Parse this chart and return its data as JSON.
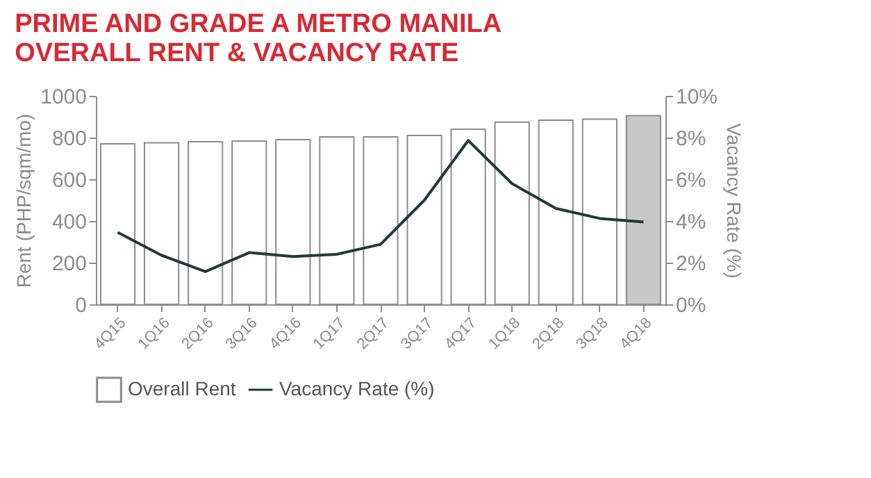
{
  "chart_data": {
    "type": "bar",
    "title": [
      "PRIME AND GRADE A METRO MANILA",
      "OVERALL RENT & VACANCY RATE"
    ],
    "ylabel": "Rent (PHP/sqm/mo)",
    "y2label": "Vacancy Rate (%)",
    "categories": [
      "4Q15",
      "1Q16",
      "2Q16",
      "3Q16",
      "4Q16",
      "1Q17",
      "2Q17",
      "3Q17",
      "4Q17",
      "1Q18",
      "2Q18",
      "3Q18",
      "4Q18"
    ],
    "series": [
      {
        "name": "Overall Rent",
        "color": "#ffffff",
        "colors": [
          "#ffffff",
          "#ffffff",
          "#ffffff",
          "#ffffff",
          "#ffffff",
          "#ffffff",
          "#ffffff",
          "#ffffff",
          "#ffffff",
          "#ffffff",
          "#ffffff",
          "#ffffff",
          "#c8c8c8"
        ],
        "values": [
          770,
          775,
          780,
          783,
          790,
          803,
          803,
          810,
          840,
          874,
          883,
          888,
          905
        ]
      },
      {
        "name": "Vacancy Rate (%)",
        "type": "line",
        "axis": "y2",
        "color": "#1f3a3d",
        "values": [
          3.45,
          2.35,
          1.57,
          2.48,
          2.29,
          2.4,
          2.88,
          5.0,
          7.86,
          5.79,
          4.6,
          4.12,
          3.95
        ]
      }
    ],
    "ylim": [
      0,
      1000
    ],
    "yticks": [
      0,
      200,
      400,
      600,
      800,
      1000
    ],
    "y2lim": [
      0,
      10
    ],
    "y2ticks": [
      {
        "value": 0,
        "label": "0%"
      },
      {
        "value": 2,
        "label": "2%"
      },
      {
        "value": 4,
        "label": "4%"
      },
      {
        "value": 6,
        "label": "6%"
      },
      {
        "value": 8,
        "label": "8%"
      },
      {
        "value": 10,
        "label": "10%"
      }
    ],
    "grid": false,
    "legend": "bottom",
    "marker": "none",
    "line_style": "solid"
  }
}
